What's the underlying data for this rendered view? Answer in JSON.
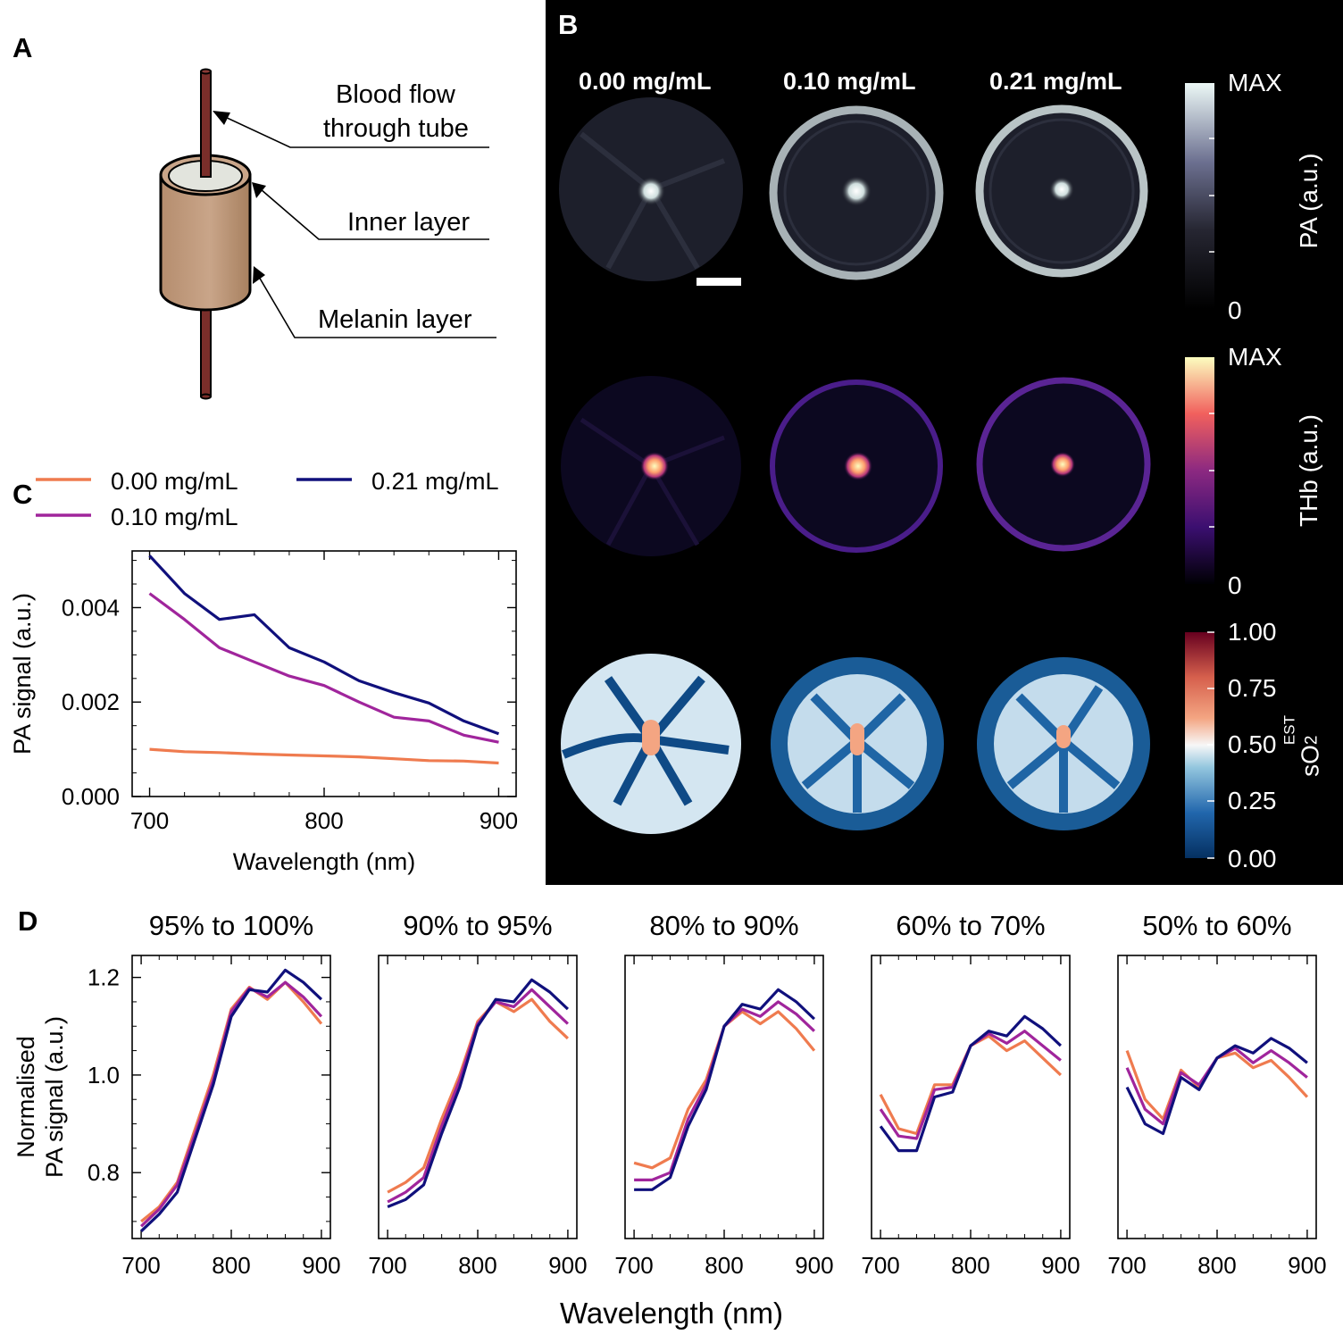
{
  "panels": {
    "a": "A",
    "b": "B",
    "c": "C",
    "d": "D"
  },
  "panel_a": {
    "labels": [
      "Blood flow",
      "through tube",
      "Inner layer",
      "Melanin layer"
    ]
  },
  "panel_b": {
    "columns": [
      "0.00 mg/mL",
      "0.10 mg/mL",
      "0.21 mg/mL"
    ],
    "colorbars": [
      {
        "max": "MAX",
        "min": "0",
        "label": "PA (a.u.)"
      },
      {
        "max": "MAX",
        "min": "0",
        "label": "THb (a.u.)"
      },
      {
        "ticks": [
          "1.00",
          "0.75",
          "0.50",
          "0.25",
          "0.00"
        ],
        "label_base": "sO",
        "label_sub": "2",
        "label_sup": "EST"
      }
    ],
    "colors": {
      "pa_low": "#000000",
      "pa_high": "#e9f6f4",
      "thb_low": "#000004",
      "thb_high": "#fcfdbf",
      "so2_low": "#053061",
      "so2_mid": "#f7f7f7",
      "so2_high": "#67001f"
    }
  },
  "chart_data": [
    {
      "type": "line",
      "panel": "C",
      "xlabel": "Wavelength (nm)",
      "ylabel": "PA signal (a.u.)",
      "xlim": [
        690,
        910
      ],
      "ylim": [
        0,
        0.0052
      ],
      "xticks": [
        "700",
        "800",
        "900"
      ],
      "yticks": [
        "0.000",
        "0.002",
        "0.004"
      ],
      "legend": "top",
      "x": [
        700,
        720,
        740,
        760,
        780,
        800,
        820,
        840,
        860,
        880,
        900
      ],
      "series": [
        {
          "name": "0.00 mg/mL",
          "color": "#ef7b4f",
          "values": [
            0.001,
            0.00095,
            0.00093,
            0.0009,
            0.00088,
            0.00086,
            0.00084,
            0.0008,
            0.00076,
            0.00075,
            0.00071
          ]
        },
        {
          "name": "0.10 mg/mL",
          "color": "#a0259c",
          "values": [
            0.0043,
            0.00375,
            0.00315,
            0.00285,
            0.00255,
            0.00235,
            0.002,
            0.00168,
            0.0016,
            0.0013,
            0.00115
          ]
        },
        {
          "name": "0.21 mg/mL",
          "color": "#10107c",
          "values": [
            0.0051,
            0.0043,
            0.00375,
            0.00385,
            0.00315,
            0.00285,
            0.00245,
            0.0022,
            0.00198,
            0.0016,
            0.00133
          ]
        }
      ]
    },
    {
      "type": "line",
      "panel": "D",
      "xlabel": "Wavelength (nm)",
      "ylabel_lines": [
        "Normalised",
        "PA signal (a.u.)"
      ],
      "xlim": [
        690,
        910
      ],
      "ylim": [
        0.665,
        1.245
      ],
      "xticks": [
        "700",
        "800",
        "900"
      ],
      "yticks": [
        "0.8",
        "1.0",
        "1.2"
      ],
      "x": [
        700,
        720,
        740,
        760,
        780,
        800,
        820,
        840,
        860,
        880,
        900
      ],
      "subplots": [
        {
          "title": "95% to 100%",
          "series": [
            {
              "name": "0.00 mg/mL",
              "values": [
                0.7,
                0.73,
                0.78,
                0.89,
                1.0,
                1.135,
                1.18,
                1.155,
                1.19,
                1.15,
                1.105
              ]
            },
            {
              "name": "0.10 mg/mL",
              "values": [
                0.69,
                0.725,
                0.775,
                0.88,
                0.99,
                1.13,
                1.178,
                1.16,
                1.19,
                1.16,
                1.12
              ]
            },
            {
              "name": "0.21 mg/mL",
              "values": [
                0.68,
                0.715,
                0.76,
                0.87,
                0.98,
                1.12,
                1.175,
                1.17,
                1.215,
                1.19,
                1.155
              ]
            }
          ]
        },
        {
          "title": "90% to 95%",
          "series": [
            {
              "name": "0.00 mg/mL",
              "values": [
                0.76,
                0.78,
                0.81,
                0.91,
                1.0,
                1.11,
                1.15,
                1.13,
                1.155,
                1.11,
                1.075
              ]
            },
            {
              "name": "0.10 mg/mL",
              "values": [
                0.74,
                0.76,
                0.79,
                0.895,
                0.99,
                1.105,
                1.15,
                1.14,
                1.175,
                1.14,
                1.105
              ]
            },
            {
              "name": "0.21 mg/mL",
              "values": [
                0.73,
                0.745,
                0.775,
                0.88,
                0.975,
                1.1,
                1.155,
                1.15,
                1.195,
                1.17,
                1.135
              ]
            }
          ]
        },
        {
          "title": "80% to 90%",
          "series": [
            {
              "name": "0.00 mg/mL",
              "values": [
                0.82,
                0.81,
                0.83,
                0.93,
                0.99,
                1.1,
                1.13,
                1.105,
                1.13,
                1.095,
                1.05
              ]
            },
            {
              "name": "0.10 mg/mL",
              "values": [
                0.785,
                0.785,
                0.8,
                0.91,
                0.98,
                1.1,
                1.135,
                1.12,
                1.15,
                1.125,
                1.09
              ]
            },
            {
              "name": "0.21 mg/mL",
              "values": [
                0.765,
                0.765,
                0.79,
                0.895,
                0.97,
                1.1,
                1.145,
                1.135,
                1.175,
                1.15,
                1.115
              ]
            }
          ]
        },
        {
          "title": "60% to 70%",
          "series": [
            {
              "name": "0.00 mg/mL",
              "values": [
                0.96,
                0.89,
                0.88,
                0.98,
                0.98,
                1.06,
                1.08,
                1.05,
                1.07,
                1.035,
                1.0
              ]
            },
            {
              "name": "0.10 mg/mL",
              "values": [
                0.93,
                0.875,
                0.87,
                0.97,
                0.975,
                1.06,
                1.085,
                1.065,
                1.09,
                1.06,
                1.03
              ]
            },
            {
              "name": "0.21 mg/mL",
              "values": [
                0.895,
                0.845,
                0.845,
                0.955,
                0.965,
                1.06,
                1.09,
                1.08,
                1.12,
                1.095,
                1.06
              ]
            }
          ]
        },
        {
          "title": "50% to 60%",
          "series": [
            {
              "name": "0.00 mg/mL",
              "values": [
                1.05,
                0.95,
                0.91,
                1.01,
                0.975,
                1.035,
                1.045,
                1.015,
                1.03,
                0.995,
                0.955
              ]
            },
            {
              "name": "0.10 mg/mL",
              "values": [
                1.015,
                0.93,
                0.9,
                1.005,
                0.98,
                1.035,
                1.055,
                1.025,
                1.05,
                1.025,
                0.995
              ]
            },
            {
              "name": "0.21 mg/mL",
              "values": [
                0.975,
                0.9,
                0.88,
                0.995,
                0.97,
                1.035,
                1.06,
                1.045,
                1.075,
                1.055,
                1.025
              ]
            }
          ]
        }
      ]
    }
  ]
}
